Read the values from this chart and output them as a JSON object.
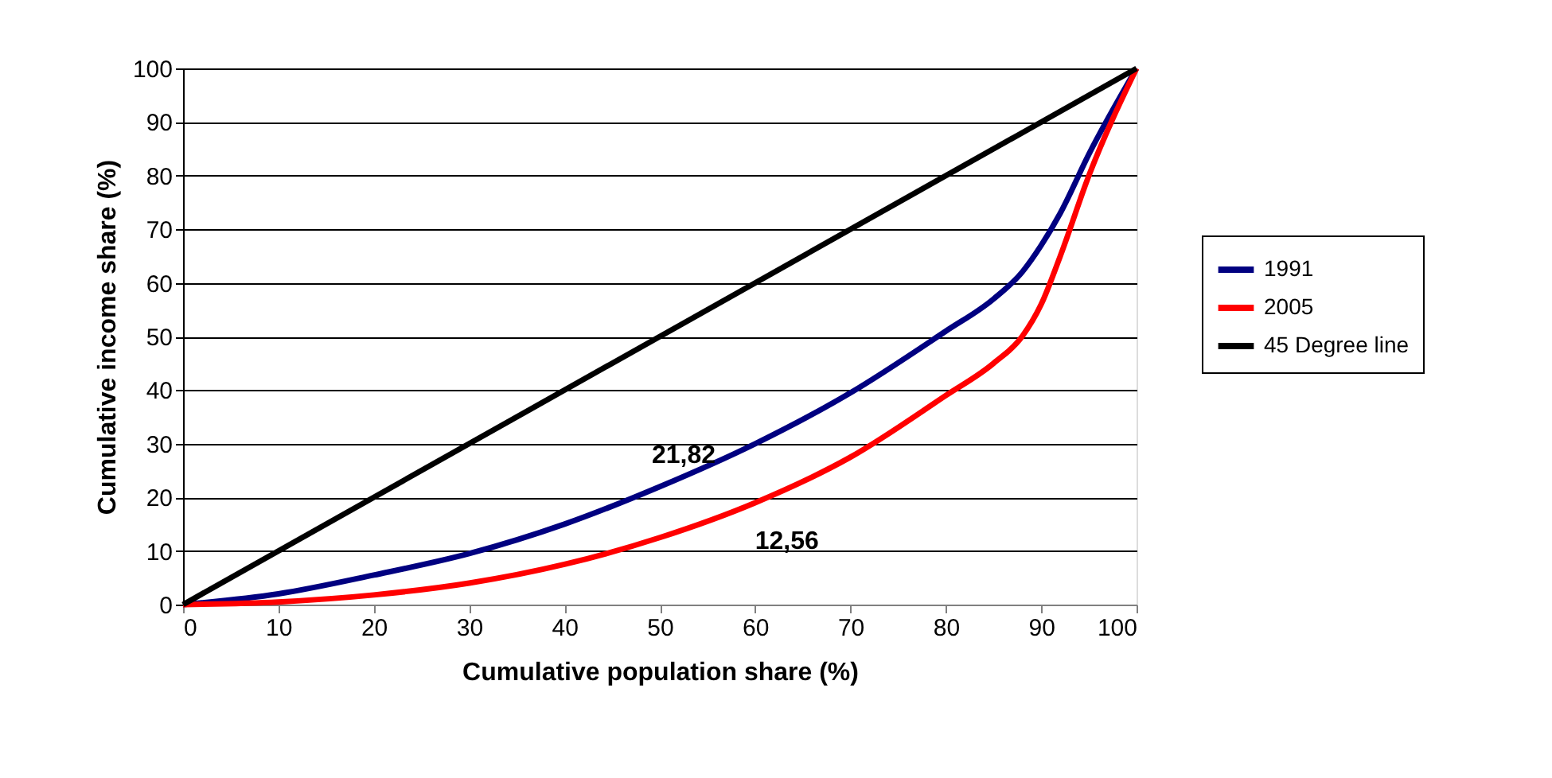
{
  "chart_data": {
    "type": "line",
    "xlabel": "Cumulative population share (%)",
    "ylabel": "Cumulative income share (%)",
    "x": [
      0,
      10,
      20,
      30,
      40,
      50,
      60,
      70,
      80,
      85,
      88,
      90,
      92,
      95,
      100
    ],
    "series": [
      {
        "name": "1991",
        "color": "#000080",
        "values": [
          0,
          2,
          5.5,
          9.5,
          15,
          22,
          30,
          39.5,
          51,
          57,
          62,
          67,
          73,
          84,
          100
        ]
      },
      {
        "name": "2005",
        "color": "#ff0000",
        "values": [
          0,
          0.5,
          1.8,
          4,
          7.5,
          12.5,
          19,
          27.5,
          39,
          45,
          50,
          56,
          65,
          80,
          100
        ]
      },
      {
        "name": "45 Degree line",
        "color": "#000000",
        "x": [
          0,
          100
        ],
        "values": [
          0,
          100
        ]
      }
    ],
    "xlim": [
      0,
      100
    ],
    "xticks": [
      0,
      10,
      20,
      30,
      40,
      50,
      60,
      70,
      80,
      90,
      100
    ],
    "ylim": [
      0,
      100
    ],
    "yticks": [
      0,
      10,
      20,
      30,
      40,
      50,
      60,
      70,
      80,
      90,
      100
    ],
    "grid": "y",
    "legend": "right",
    "marker": "none",
    "line_style": "solid",
    "annotations": [
      "21,82",
      "12,56"
    ]
  }
}
